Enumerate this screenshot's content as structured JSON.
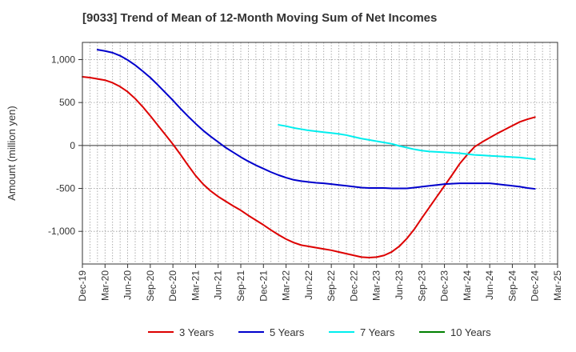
{
  "chart_data": {
    "type": "line",
    "title": "[9033]  Trend of Mean of 12-Month Moving Sum of Net Incomes",
    "xlabel": "",
    "ylabel": "Amount (million yen)",
    "ylim": [
      -1380,
      1200
    ],
    "yticks": [
      1000,
      500,
      0,
      -500,
      -1000
    ],
    "ytick_labels": [
      "1,000",
      "500",
      "0",
      "-500",
      "-1,000"
    ],
    "x_range": [
      "2019-12",
      "2025-03"
    ],
    "xtick_labels": [
      "Dec-19",
      "Mar-20",
      "Jun-20",
      "Sep-20",
      "Dec-20",
      "Mar-21",
      "Jun-21",
      "Sep-21",
      "Dec-21",
      "Mar-22",
      "Jun-22",
      "Sep-22",
      "Dec-22",
      "Mar-23",
      "Jun-23",
      "Sep-23",
      "Dec-23",
      "Mar-24",
      "Jun-24",
      "Sep-24",
      "Dec-24",
      "Mar-25"
    ],
    "grid": "vertical-monthly-dotted, horizontal-dotted, zero-line solid",
    "legend_position": "bottom",
    "series": [
      {
        "name": "3 Years",
        "color": "#dd0000",
        "points": [
          [
            "2019-12",
            800
          ],
          [
            "2020-01",
            790
          ],
          [
            "2020-02",
            775
          ],
          [
            "2020-03",
            760
          ],
          [
            "2020-04",
            730
          ],
          [
            "2020-05",
            685
          ],
          [
            "2020-06",
            625
          ],
          [
            "2020-07",
            545
          ],
          [
            "2020-08",
            450
          ],
          [
            "2020-09",
            345
          ],
          [
            "2020-10",
            235
          ],
          [
            "2020-11",
            125
          ],
          [
            "2020-12",
            15
          ],
          [
            "2021-01",
            -105
          ],
          [
            "2021-02",
            -230
          ],
          [
            "2021-03",
            -350
          ],
          [
            "2021-04",
            -450
          ],
          [
            "2021-05",
            -530
          ],
          [
            "2021-06",
            -595
          ],
          [
            "2021-07",
            -650
          ],
          [
            "2021-08",
            -705
          ],
          [
            "2021-09",
            -755
          ],
          [
            "2021-10",
            -815
          ],
          [
            "2021-11",
            -870
          ],
          [
            "2021-12",
            -925
          ],
          [
            "2022-01",
            -985
          ],
          [
            "2022-02",
            -1040
          ],
          [
            "2022-03",
            -1090
          ],
          [
            "2022-04",
            -1130
          ],
          [
            "2022-05",
            -1160
          ],
          [
            "2022-06",
            -1175
          ],
          [
            "2022-07",
            -1190
          ],
          [
            "2022-08",
            -1205
          ],
          [
            "2022-09",
            -1220
          ],
          [
            "2022-10",
            -1240
          ],
          [
            "2022-11",
            -1260
          ],
          [
            "2022-12",
            -1280
          ],
          [
            "2023-01",
            -1300
          ],
          [
            "2023-02",
            -1305
          ],
          [
            "2023-03",
            -1300
          ],
          [
            "2023-04",
            -1280
          ],
          [
            "2023-05",
            -1240
          ],
          [
            "2023-06",
            -1175
          ],
          [
            "2023-07",
            -1085
          ],
          [
            "2023-08",
            -975
          ],
          [
            "2023-09",
            -845
          ],
          [
            "2023-10",
            -720
          ],
          [
            "2023-11",
            -595
          ],
          [
            "2023-12",
            -470
          ],
          [
            "2024-01",
            -345
          ],
          [
            "2024-02",
            -215
          ],
          [
            "2024-03",
            -110
          ],
          [
            "2024-04",
            -15
          ],
          [
            "2024-05",
            40
          ],
          [
            "2024-06",
            90
          ],
          [
            "2024-07",
            140
          ],
          [
            "2024-08",
            185
          ],
          [
            "2024-09",
            230
          ],
          [
            "2024-10",
            275
          ],
          [
            "2024-11",
            305
          ],
          [
            "2024-12",
            330
          ]
        ]
      },
      {
        "name": "5 Years",
        "color": "#0000cc",
        "points": [
          [
            "2020-02",
            1115
          ],
          [
            "2020-03",
            1100
          ],
          [
            "2020-04",
            1080
          ],
          [
            "2020-05",
            1045
          ],
          [
            "2020-06",
            995
          ],
          [
            "2020-07",
            935
          ],
          [
            "2020-08",
            865
          ],
          [
            "2020-09",
            790
          ],
          [
            "2020-10",
            705
          ],
          [
            "2020-11",
            615
          ],
          [
            "2020-12",
            525
          ],
          [
            "2021-01",
            430
          ],
          [
            "2021-02",
            340
          ],
          [
            "2021-03",
            255
          ],
          [
            "2021-04",
            175
          ],
          [
            "2021-05",
            105
          ],
          [
            "2021-06",
            40
          ],
          [
            "2021-07",
            -25
          ],
          [
            "2021-08",
            -80
          ],
          [
            "2021-09",
            -135
          ],
          [
            "2021-10",
            -185
          ],
          [
            "2021-11",
            -230
          ],
          [
            "2021-12",
            -270
          ],
          [
            "2022-01",
            -310
          ],
          [
            "2022-02",
            -345
          ],
          [
            "2022-03",
            -375
          ],
          [
            "2022-04",
            -400
          ],
          [
            "2022-05",
            -415
          ],
          [
            "2022-06",
            -425
          ],
          [
            "2022-07",
            -435
          ],
          [
            "2022-08",
            -440
          ],
          [
            "2022-09",
            -450
          ],
          [
            "2022-10",
            -460
          ],
          [
            "2022-11",
            -470
          ],
          [
            "2022-12",
            -480
          ],
          [
            "2023-01",
            -490
          ],
          [
            "2023-02",
            -495
          ],
          [
            "2023-03",
            -495
          ],
          [
            "2023-04",
            -495
          ],
          [
            "2023-05",
            -500
          ],
          [
            "2023-06",
            -500
          ],
          [
            "2023-07",
            -500
          ],
          [
            "2023-08",
            -490
          ],
          [
            "2023-09",
            -480
          ],
          [
            "2023-10",
            -470
          ],
          [
            "2023-11",
            -460
          ],
          [
            "2023-12",
            -450
          ],
          [
            "2024-01",
            -445
          ],
          [
            "2024-02",
            -440
          ],
          [
            "2024-03",
            -440
          ],
          [
            "2024-04",
            -440
          ],
          [
            "2024-05",
            -440
          ],
          [
            "2024-06",
            -440
          ],
          [
            "2024-07",
            -450
          ],
          [
            "2024-08",
            -460
          ],
          [
            "2024-09",
            -470
          ],
          [
            "2024-10",
            -480
          ],
          [
            "2024-11",
            -495
          ],
          [
            "2024-12",
            -505
          ]
        ]
      },
      {
        "name": "7 Years",
        "color": "#00eeee",
        "points": [
          [
            "2022-02",
            240
          ],
          [
            "2022-03",
            225
          ],
          [
            "2022-04",
            205
          ],
          [
            "2022-05",
            190
          ],
          [
            "2022-06",
            175
          ],
          [
            "2022-07",
            165
          ],
          [
            "2022-08",
            155
          ],
          [
            "2022-09",
            145
          ],
          [
            "2022-10",
            135
          ],
          [
            "2022-11",
            120
          ],
          [
            "2022-12",
            100
          ],
          [
            "2023-01",
            80
          ],
          [
            "2023-02",
            65
          ],
          [
            "2023-03",
            50
          ],
          [
            "2023-04",
            35
          ],
          [
            "2023-05",
            20
          ],
          [
            "2023-06",
            -5
          ],
          [
            "2023-07",
            -25
          ],
          [
            "2023-08",
            -45
          ],
          [
            "2023-09",
            -60
          ],
          [
            "2023-10",
            -70
          ],
          [
            "2023-11",
            -75
          ],
          [
            "2023-12",
            -80
          ],
          [
            "2024-01",
            -85
          ],
          [
            "2024-02",
            -90
          ],
          [
            "2024-03",
            -100
          ],
          [
            "2024-04",
            -110
          ],
          [
            "2024-05",
            -115
          ],
          [
            "2024-06",
            -120
          ],
          [
            "2024-07",
            -125
          ],
          [
            "2024-08",
            -130
          ],
          [
            "2024-09",
            -135
          ],
          [
            "2024-10",
            -140
          ],
          [
            "2024-11",
            -150
          ],
          [
            "2024-12",
            -160
          ]
        ]
      },
      {
        "name": "10 Years",
        "color": "#008000",
        "points": []
      }
    ]
  }
}
